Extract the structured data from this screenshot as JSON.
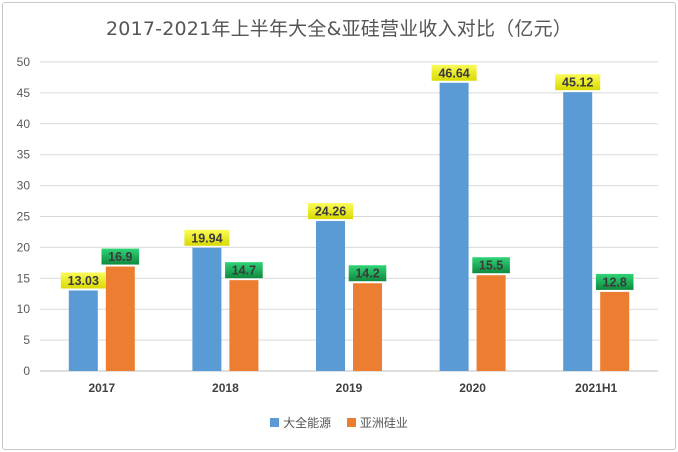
{
  "chart_data": {
    "type": "bar",
    "title": "2017-2021年上半年大全&亚硅营业收入对比（亿元）",
    "categories": [
      "2017",
      "2018",
      "2019",
      "2020",
      "2021H1"
    ],
    "series": [
      {
        "name": "大全能源",
        "color": "#5b9bd5",
        "label_bg": "#f2f200",
        "values": [
          13.03,
          19.94,
          24.26,
          46.64,
          45.12
        ]
      },
      {
        "name": "亚洲硅业",
        "color": "#ed7d31",
        "label_bg": "#18b85a",
        "values": [
          16.9,
          14.7,
          14.2,
          15.5,
          12.8
        ]
      }
    ],
    "ylim": [
      0,
      50
    ],
    "yticks": [
      0,
      5,
      10,
      15,
      20,
      25,
      30,
      35,
      40,
      45,
      50
    ],
    "grid": true,
    "legend": "bottom"
  }
}
